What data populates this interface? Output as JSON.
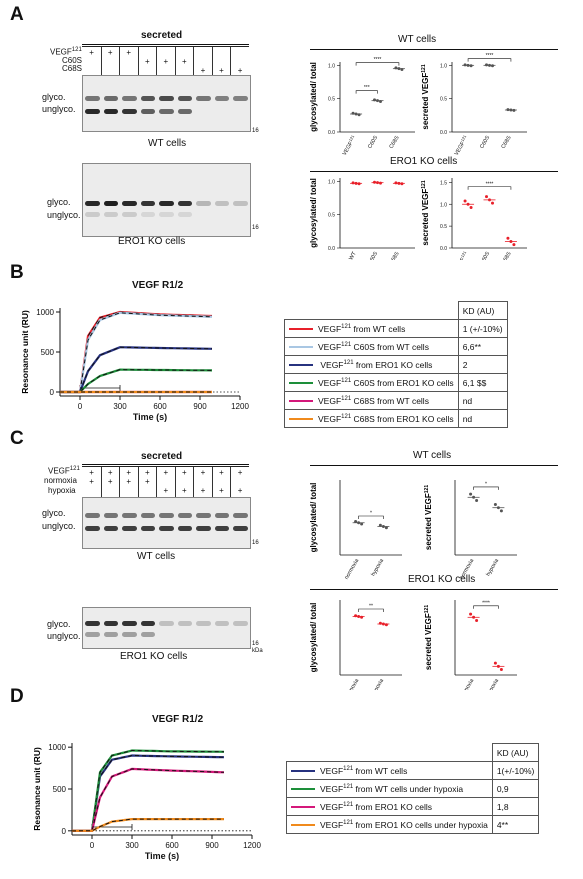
{
  "panels": {
    "a": "A",
    "b": "B",
    "c": "C",
    "d": "D"
  },
  "colors": {
    "red": "#e8202a",
    "lightblue": "#a9c7e3",
    "navy": "#27327f",
    "green": "#1d8f3a",
    "magenta": "#d4187a",
    "orange": "#f08a1c",
    "grey": "#555555"
  },
  "a": {
    "blot_title": "secreted",
    "rows": {
      "vegf": "VEGF",
      "vegf_sup": "121",
      "c60s": "C60S",
      "c68s": "C68S"
    },
    "plus": "+",
    "glyco": "glyco.",
    "unglyco": "unglyco.",
    "marker": "16",
    "wt_cells": "WT cells",
    "ero1_cells": "ERO1 KO cells",
    "wt_title": "WT cells",
    "ero1_title": "ERO1 KO cells",
    "ylab_ratio": "glycosylated/ total",
    "ylab_secreted": "secreted VEGF",
    "ylab_secreted_sup": "121",
    "x_cats": [
      "VEGF",
      "C60S",
      "C68S"
    ],
    "x_cats_b": [
      "WT",
      "C60S",
      "C68S"
    ],
    "x_sup": "121",
    "sig4": "****",
    "sig3": "***"
  },
  "b": {
    "title": "VEGF R1/2",
    "ylabel": "Resonance unit (RU)",
    "xlabel": "Time (s)",
    "yticks": [
      "1000",
      "500",
      "0"
    ],
    "xticks": [
      "0",
      "300",
      "600",
      "900",
      "1200"
    ],
    "kd_header": "KD (AU)",
    "legend": [
      {
        "pre": "VEGF",
        "sup": "121",
        "post": " from WT cells",
        "kd": "1 (+/-10%)",
        "color": "#e8202a"
      },
      {
        "pre": "VEGF",
        "sup": "121",
        "post": " C60S from WT cells",
        "kd": "6,6**",
        "color": "#a9c7e3"
      },
      {
        "pre": " VEGF",
        "sup": "121",
        "post": " from ERO1 KO cells",
        "kd": "2",
        "color": "#27327f"
      },
      {
        "pre": "VEGF",
        "sup": "121",
        "post": " C60S from ERO1 KO cells",
        "kd": "6,1 $$",
        "color": "#1d8f3a"
      },
      {
        "pre": "VEGF",
        "sup": "121",
        "post": " C68S from WT cells",
        "kd": "nd",
        "color": "#d4187a"
      },
      {
        "pre": "VEGF",
        "sup": "121",
        "post": " C68S from ERO1 KO cells",
        "kd": "nd",
        "color": "#f08a1c"
      }
    ]
  },
  "c": {
    "blot_title": "secreted",
    "rows": {
      "vegf": "VEGF",
      "vegf_sup": "121",
      "normoxia": "normoxia",
      "hypoxia": "hypoxia"
    },
    "plus": "+",
    "glyco": "glyco.",
    "unglyco": "unglyco.",
    "marker": "16",
    "kda": "kDa",
    "wt_cells": "WT cells",
    "ero1_cells": "ERO1 KO cells",
    "wt_title": "WT cells",
    "ero1_title": "ERO1 KO cells",
    "ylab_ratio": "glycosylated/ total",
    "ylab_secreted": "secreted VEGF",
    "ylab_secreted_sup": "121",
    "x_cats": [
      "normoxia",
      "hypoxia"
    ],
    "sig1": "*",
    "sig2": "**",
    "sig4": "****"
  },
  "d": {
    "title": "VEGF R1/2",
    "ylabel": "Resonance unit (RU)",
    "xlabel": "Time (s)",
    "yticks": [
      "1000",
      "500",
      "0"
    ],
    "xticks": [
      "0",
      "300",
      "600",
      "900",
      "1200"
    ],
    "kd_header": "KD (AU)",
    "legend": [
      {
        "pre": "VEGF",
        "sup": "121",
        "post": " from WT cells",
        "kd": "1(+/-10%)",
        "color": "#27327f"
      },
      {
        "pre": "VEGF",
        "sup": "121",
        "post": " from WT cells under hypoxia",
        "kd": "0,9",
        "color": "#1d8f3a"
      },
      {
        "pre": "VEGF",
        "sup": "121",
        "post": " from ERO1 KO cells",
        "kd": "1,8",
        "color": "#d4187a"
      },
      {
        "pre": "VEGF",
        "sup": "121",
        "post": " from ERO1 KO cells under hypoxia",
        "kd": "4**",
        "color": "#f08a1c"
      }
    ]
  },
  "chart_data": [
    {
      "type": "scatter",
      "panel": "A",
      "title": "WT cells",
      "ylabel": "glycosylated/ total",
      "categories": [
        "VEGF121",
        "C60S",
        "C68S"
      ],
      "values": [
        0.27,
        0.47,
        0.95
      ],
      "ylim": [
        0,
        1.0
      ]
    },
    {
      "type": "scatter",
      "panel": "A",
      "title": "WT cells",
      "ylabel": "secreted VEGF121",
      "categories": [
        "VEGF121",
        "C60S",
        "C68S"
      ],
      "values": [
        1.0,
        1.0,
        0.33
      ],
      "ylim": [
        0,
        1.0
      ]
    },
    {
      "type": "scatter",
      "panel": "A",
      "title": "ERO1 KO cells",
      "ylabel": "glycosylated/ total",
      "categories": [
        "WT",
        "C60S",
        "C68S"
      ],
      "values": [
        0.97,
        0.98,
        0.97
      ],
      "ylim": [
        0,
        1.0
      ]
    },
    {
      "type": "scatter",
      "panel": "A",
      "title": "ERO1 KO cells",
      "ylabel": "secreted VEGF121",
      "categories": [
        "WT",
        "C60S",
        "C68S"
      ],
      "values": [
        1.0,
        1.1,
        0.15
      ],
      "ylim": [
        0,
        1.5
      ]
    },
    {
      "type": "line",
      "panel": "B",
      "title": "VEGF R1/2",
      "xlabel": "Time (s)",
      "ylabel": "Resonance unit (RU)",
      "xlim": [
        0,
        1200
      ],
      "ylim": [
        0,
        1000
      ],
      "series": [
        {
          "name": "VEGF121 from WT cells",
          "x": [
            0,
            60,
            150,
            300,
            600,
            990
          ],
          "y": [
            0,
            700,
            930,
            1000,
            970,
            950
          ]
        },
        {
          "name": "VEGF121 C60S from WT cells",
          "x": [
            0,
            60,
            150,
            300,
            600,
            990
          ],
          "y": [
            0,
            650,
            900,
            990,
            960,
            940
          ]
        },
        {
          "name": "VEGF121 from ERO1 KO cells",
          "x": [
            0,
            60,
            150,
            300,
            600,
            990
          ],
          "y": [
            0,
            260,
            460,
            560,
            550,
            540
          ]
        },
        {
          "name": "VEGF121 C60S from ERO1 KO cells",
          "x": [
            0,
            60,
            150,
            300,
            600,
            990
          ],
          "y": [
            0,
            100,
            200,
            280,
            275,
            270
          ]
        },
        {
          "name": "VEGF121 C68S from WT cells",
          "x": [
            0,
            300,
            990
          ],
          "y": [
            0,
            0,
            0
          ]
        },
        {
          "name": "VEGF121 C68S from ERO1 KO cells",
          "x": [
            0,
            300,
            990
          ],
          "y": [
            0,
            0,
            0
          ]
        }
      ]
    },
    {
      "type": "scatter",
      "panel": "C",
      "title": "WT cells",
      "ylabel": "glycosylated/ total",
      "categories": [
        "normoxia",
        "hypoxia"
      ],
      "values": [
        0.43,
        0.38
      ]
    },
    {
      "type": "scatter",
      "panel": "C",
      "title": "WT cells",
      "ylabel": "secreted VEGF121",
      "categories": [
        "normoxia",
        "hypoxia"
      ],
      "values": [
        1.0,
        0.82
      ]
    },
    {
      "type": "scatter",
      "panel": "C",
      "title": "ERO1 KO cells",
      "ylabel": "glycosylated/ total",
      "categories": [
        "normoxia",
        "hypoxia"
      ],
      "values": [
        0.78,
        0.68
      ]
    },
    {
      "type": "scatter",
      "panel": "C",
      "title": "ERO1 KO cells",
      "ylabel": "secreted VEGF121",
      "categories": [
        "normoxia",
        "hypoxia"
      ],
      "values": [
        1.0,
        0.15
      ]
    },
    {
      "type": "line",
      "panel": "D",
      "title": "VEGF R1/2",
      "xlabel": "Time (s)",
      "ylabel": "Resonance unit (RU)",
      "xlim": [
        0,
        1200
      ],
      "ylim": [
        0,
        1000
      ],
      "series": [
        {
          "name": "VEGF121 from WT cells",
          "x": [
            0,
            60,
            150,
            300,
            600,
            990
          ],
          "y": [
            0,
            650,
            850,
            900,
            890,
            880
          ]
        },
        {
          "name": "VEGF121 from WT cells under hypoxia",
          "x": [
            0,
            60,
            150,
            300,
            600,
            990
          ],
          "y": [
            0,
            700,
            900,
            960,
            950,
            945
          ]
        },
        {
          "name": "VEGF121 from ERO1 KO cells",
          "x": [
            0,
            60,
            150,
            300,
            600,
            990
          ],
          "y": [
            0,
            400,
            650,
            740,
            720,
            700
          ]
        },
        {
          "name": "VEGF121 from ERO1 KO cells under hypoxia",
          "x": [
            0,
            60,
            150,
            300,
            600,
            990
          ],
          "y": [
            0,
            50,
            110,
            140,
            140,
            140
          ]
        }
      ]
    }
  ]
}
